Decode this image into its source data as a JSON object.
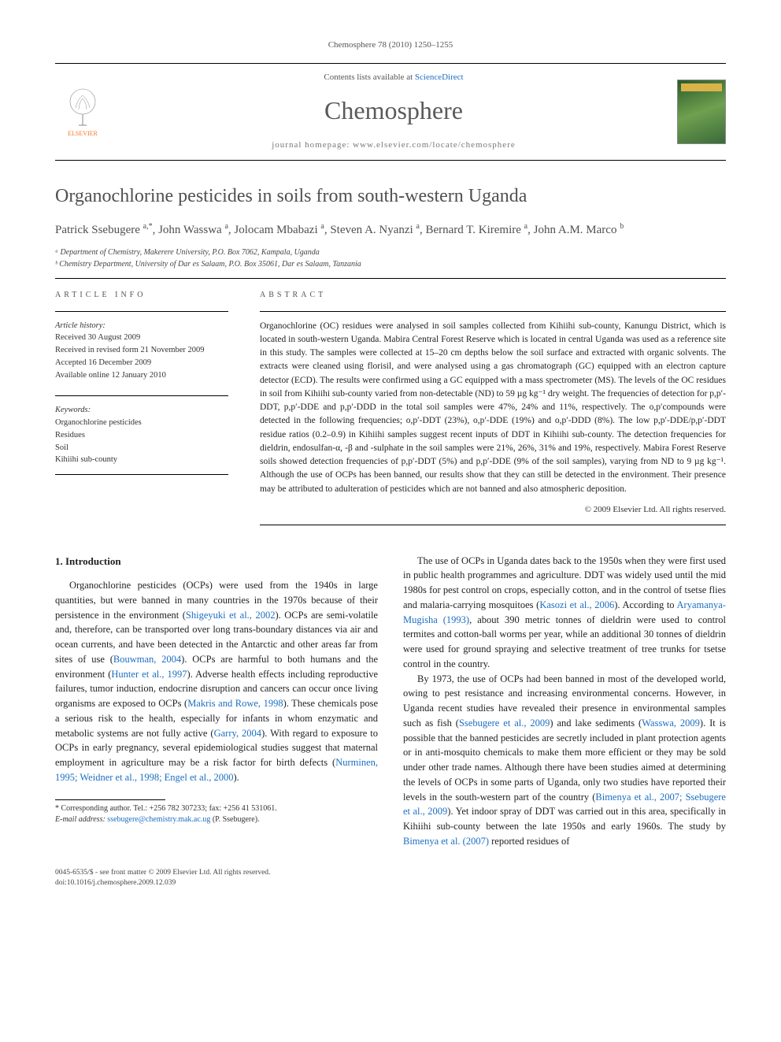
{
  "header": {
    "citation": "Chemosphere 78 (2010) 1250–1255",
    "contents_prefix": "Contents lists available at ",
    "contents_link": "ScienceDirect",
    "journal_name": "Chemosphere",
    "homepage_prefix": "journal homepage: ",
    "homepage_url": "www.elsevier.com/locate/chemosphere",
    "publisher_label": "ELSEVIER"
  },
  "article": {
    "title": "Organochlorine pesticides in soils from south-western Uganda",
    "authors_html": "Patrick Ssebugere <sup>a,*</sup>, John Wasswa <sup>a</sup>, Jolocam Mbabazi <sup>a</sup>, Steven A. Nyanzi <sup>a</sup>, Bernard T. Kiremire <sup>a</sup>, John A.M. Marco <sup>b</sup>",
    "affiliations": [
      "ᵃ Department of Chemistry, Makerere University, P.O. Box 7062, Kampala, Uganda",
      "ᵇ Chemistry Department, University of Dar es Salaam, P.O. Box 35061, Dar es Salaam, Tanzania"
    ]
  },
  "info": {
    "heading": "ARTICLE INFO",
    "history_label": "Article history:",
    "history": [
      "Received 30 August 2009",
      "Received in revised form 21 November 2009",
      "Accepted 16 December 2009",
      "Available online 12 January 2010"
    ],
    "keywords_label": "Keywords:",
    "keywords": [
      "Organochlorine pesticides",
      "Residues",
      "Soil",
      "Kihiihi sub-county"
    ]
  },
  "abstract": {
    "heading": "ABSTRACT",
    "text": "Organochlorine (OC) residues were analysed in soil samples collected from Kihiihi sub-county, Kanungu District, which is located in south-western Uganda. Mabira Central Forest Reserve which is located in central Uganda was used as a reference site in this study. The samples were collected at 15–20 cm depths below the soil surface and extracted with organic solvents. The extracts were cleaned using florisil, and were analysed using a gas chromatograph (GC) equipped with an electron capture detector (ECD). The results were confirmed using a GC equipped with a mass spectrometer (MS). The levels of the OC residues in soil from Kihiihi sub-county varied from non-detectable (ND) to 59 µg kg⁻¹ dry weight. The frequencies of detection for p,p′-DDT, p,p′-DDE and p,p′-DDD in the total soil samples were 47%, 24% and 11%, respectively. The o,p′compounds were detected in the following frequencies; o,p′-DDT (23%), o,p′-DDE (19%) and o,p′-DDD (8%). The low p,p′-DDE/p,p′-DDT residue ratios (0.2–0.9) in Kihiihi samples suggest recent inputs of DDT in Kihiihi sub-county. The detection frequencies for dieldrin, endosulfan-α, -β and -sulphate in the soil samples were 21%, 26%, 31% and 19%, respectively. Mabira Forest Reserve soils showed detection frequencies of p,p′-DDT (5%) and p,p′-DDE (9% of the soil samples), varying from ND to 9 µg kg⁻¹. Although the use of OCPs has been banned, our results show that they can still be detected in the environment. Their presence may be attributed to adulteration of pesticides which are not banned and also atmospheric deposition.",
    "copyright": "© 2009 Elsevier Ltd. All rights reserved."
  },
  "body": {
    "section_number": "1.",
    "section_title": "Introduction",
    "col1_p1": "Organochlorine pesticides (OCPs) were used from the 1940s in large quantities, but were banned in many countries in the 1970s because of their persistence in the environment (Shigeyuki et al., 2002). OCPs are semi-volatile and, therefore, can be transported over long trans-boundary distances via air and ocean currents, and have been detected in the Antarctic and other areas far from sites of use (Bouwman, 2004). OCPs are harmful to both humans and the environment (Hunter et al., 1997). Adverse health effects including reproductive failures, tumor induction, endocrine disruption and cancers can occur once living organisms are exposed to OCPs (Makris and Rowe, 1998). These chemicals pose a serious risk to the health, especially for infants in whom enzymatic and metabolic systems are not fully active (Garry, 2004). With regard to exposure to OCPs in early pregnancy, several epidemiological studies suggest that maternal employment in agriculture may be a risk factor for birth defects (Nurminen, 1995; Weidner et al., 1998; Engel et al., 2000).",
    "col2_p1": "The use of OCPs in Uganda dates back to the 1950s when they were first used in public health programmes and agriculture. DDT was widely used until the mid 1980s for pest control on crops, especially cotton, and in the control of tsetse flies and malaria-carrying mosquitoes (Kasozi et al., 2006). According to Aryamanya-Mugisha (1993), about 390 metric tonnes of dieldrin were used to control termites and cotton-ball worms per year, while an additional 30 tonnes of dieldrin were used for ground spraying and selective treatment of tree trunks for tsetse control in the country.",
    "col2_p2": "By 1973, the use of OCPs had been banned in most of the developed world, owing to pest resistance and increasing environmental concerns. However, in Uganda recent studies have revealed their presence in environmental samples such as fish (Ssebugere et al., 2009) and lake sediments (Wasswa, 2009). It is possible that the banned pesticides are secretly included in plant protection agents or in anti-mosquito chemicals to make them more efficient or they may be sold under other trade names. Although there have been studies aimed at determining the levels of OCPs in some parts of Uganda, only two studies have reported their levels in the south-western part of the country (Bimenya et al., 2007; Ssebugere et al., 2009). Yet indoor spray of DDT was carried out in this area, specifically in Kihiihi sub-county between the late 1950s and early 1960s. The study by Bimenya et al. (2007) reported residues of"
  },
  "footnote": {
    "corr": "* Corresponding author. Tel.: +256 782 307233; fax: +256 41 531061.",
    "email_label": "E-mail address:",
    "email": "ssebugere@chemistry.mak.ac.ug",
    "email_suffix": "(P. Ssebugere)."
  },
  "footer": {
    "left_line1": "0045-6535/$ - see front matter © 2009 Elsevier Ltd. All rights reserved.",
    "left_line2": "doi:10.1016/j.chemosphere.2009.12.039"
  },
  "links": {
    "refs_col1": [
      "Shigeyuki et al., 2002",
      "Bouwman, 2004",
      "Hunter et al., 1997",
      "Makris and Rowe, 1998",
      "Garry, 2004",
      "Nurminen, 1995; Weidner et al., 1998; Engel et al., 2000"
    ],
    "refs_col2": [
      "Kasozi et al., 2006",
      "Aryamanya-Mugisha (1993)",
      "Ssebugere et al., 2009",
      "Wasswa, 2009",
      "Bimenya et al., 2007; Ssebugere et al., 2009",
      "Bimenya et al. (2007)"
    ]
  },
  "colors": {
    "link": "#1b6ec2",
    "heading_gray": "#505050",
    "elsevier_orange": "#f47920"
  }
}
